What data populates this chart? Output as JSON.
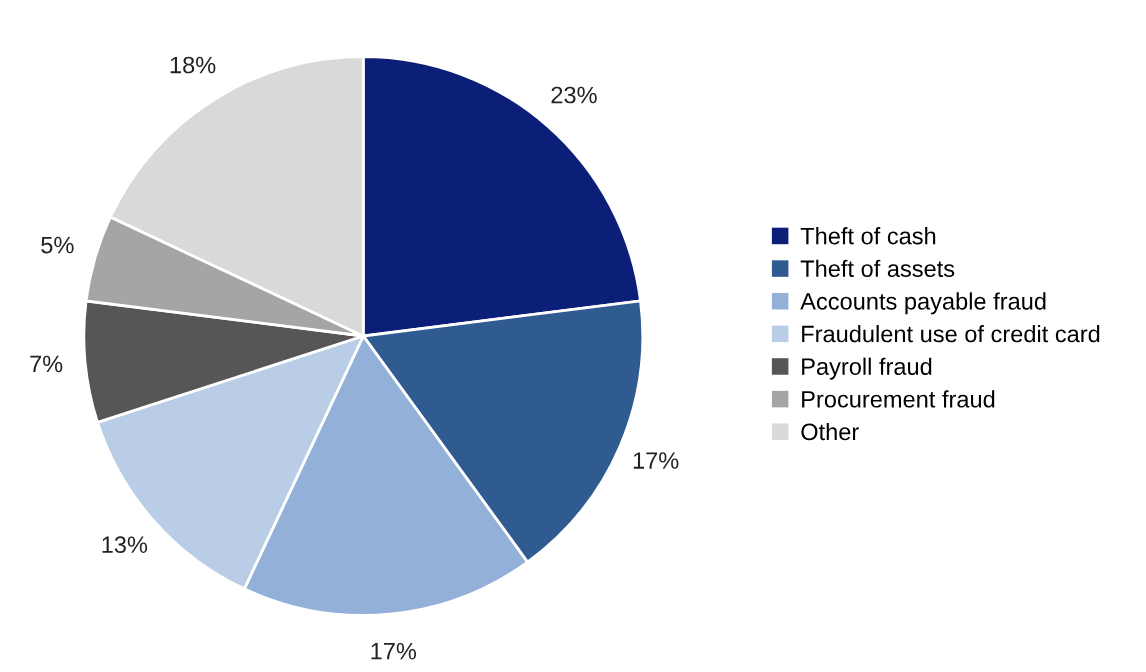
{
  "chart_data": {
    "type": "pie",
    "categories": [
      "Theft of cash",
      "Theft of assets",
      "Accounts payable fraud",
      "Fraudulent use of credit card",
      "Payroll fraud",
      "Procurement fraud",
      "Other"
    ],
    "values": [
      23,
      17,
      17,
      13,
      7,
      5,
      18
    ],
    "colors": [
      "#0c1f78",
      "#2f5b90",
      "#93b0d8",
      "#b9cde6",
      "#565656",
      "#a5a5a5",
      "#d9d9d9"
    ],
    "value_labels": [
      "23%",
      "17%",
      "17%",
      "13%",
      "7%",
      "5%",
      "18%"
    ],
    "legend": "right"
  }
}
